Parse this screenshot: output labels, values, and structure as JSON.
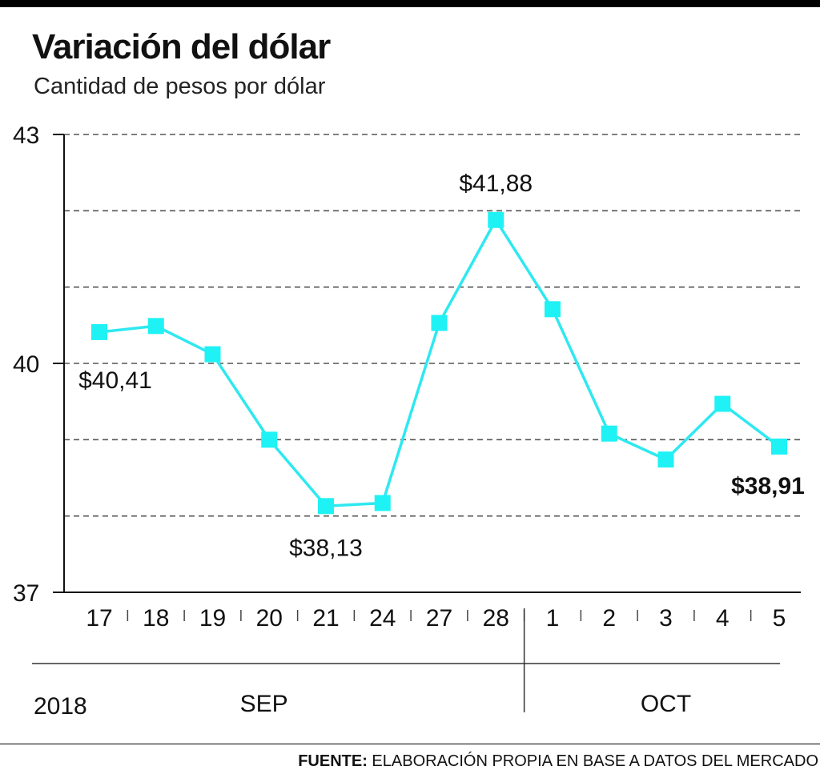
{
  "chart_data": {
    "type": "line",
    "title": "Variación del dólar",
    "subtitle": "Cantidad de pesos por dólar",
    "categories": [
      "17",
      "18",
      "19",
      "20",
      "21",
      "24",
      "27",
      "28",
      "1",
      "2",
      "3",
      "4",
      "5"
    ],
    "series": [
      {
        "values": [
          40.41,
          40.49,
          40.12,
          39.0,
          38.13,
          38.17,
          40.53,
          41.88,
          40.71,
          39.08,
          38.74,
          39.47,
          38.91
        ]
      }
    ],
    "ylim": [
      37,
      43
    ],
    "yticks": [
      "43",
      "40",
      "37"
    ],
    "grid": true,
    "annotations": [
      {
        "index": 0,
        "text": "$40,41",
        "bold": false
      },
      {
        "index": 4,
        "text": "$38,13",
        "bold": false
      },
      {
        "index": 7,
        "text": "$41,88",
        "bold": false
      },
      {
        "index": 12,
        "text": "$38,91",
        "bold": true
      }
    ],
    "year": "2018",
    "month_groups": [
      {
        "label": "SEP",
        "start": 0,
        "end": 7
      },
      {
        "label": "OCT",
        "start": 8,
        "end": 12
      }
    ],
    "line_color": "#2ee8f0",
    "marker_color": "#1ff2f5"
  },
  "source": {
    "label": "FUENTE:",
    "text": " ELABORACIÓN PROPIA EN BASE A DATOS DEL MERCADO"
  }
}
